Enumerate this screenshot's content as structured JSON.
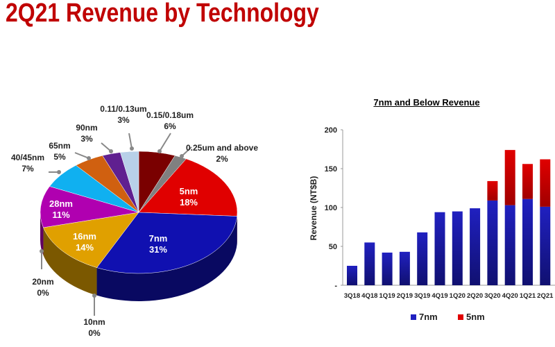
{
  "title": "2Q21 Revenue by Technology",
  "chart_data": [
    {
      "type": "pie",
      "title": "2Q21 Revenue by Technology",
      "slices": [
        {
          "label": "0.15/0.18um",
          "value": 6,
          "display": "6%",
          "color": "#7a0000"
        },
        {
          "label": "0.25um and above",
          "value": 2,
          "display": "2%",
          "color": "#808080"
        },
        {
          "label": "5nm",
          "value": 18,
          "display": "18%",
          "color": "#e00000"
        },
        {
          "label": "7nm",
          "value": 31,
          "display": "31%",
          "color": "#1010b0"
        },
        {
          "label": "10nm",
          "value": 0,
          "display": "0%",
          "color": "#000060"
        },
        {
          "label": "16nm",
          "value": 14,
          "display": "14%",
          "color": "#e0a000"
        },
        {
          "label": "20nm",
          "value": 0,
          "display": "0%",
          "color": "#c08000"
        },
        {
          "label": "28nm",
          "value": 11,
          "display": "11%",
          "color": "#b000b0"
        },
        {
          "label": "40/45nm",
          "value": 7,
          "display": "7%",
          "color": "#10b0f0"
        },
        {
          "label": "65nm",
          "value": 5,
          "display": "5%",
          "color": "#d06010"
        },
        {
          "label": "90nm",
          "value": 3,
          "display": "3%",
          "color": "#602090"
        },
        {
          "label": "0.11/0.13um",
          "value": 3,
          "display": "3%",
          "color": "#b8d0e8"
        }
      ]
    },
    {
      "type": "bar",
      "stacked": true,
      "title": "7nm and Below Revenue",
      "xlabel": "",
      "ylabel": "Revenue (NT$B)",
      "ylim": [
        0,
        200
      ],
      "yticks": [
        "-",
        "50",
        "100",
        "150",
        "200"
      ],
      "categories": [
        "3Q18",
        "4Q18",
        "1Q19",
        "2Q19",
        "3Q19",
        "4Q19",
        "1Q20",
        "2Q20",
        "3Q20",
        "4Q20",
        "1Q21",
        "2Q21"
      ],
      "series": [
        {
          "name": "7nm",
          "color": "#2020c0",
          "values": [
            25,
            55,
            42,
            43,
            68,
            94,
            95,
            99,
            109,
            103,
            111,
            101
          ]
        },
        {
          "name": "5nm",
          "color": "#e00000",
          "values": [
            0,
            0,
            0,
            0,
            0,
            0,
            0,
            0,
            25,
            71,
            45,
            61
          ]
        }
      ],
      "legend": "bottom"
    }
  ]
}
